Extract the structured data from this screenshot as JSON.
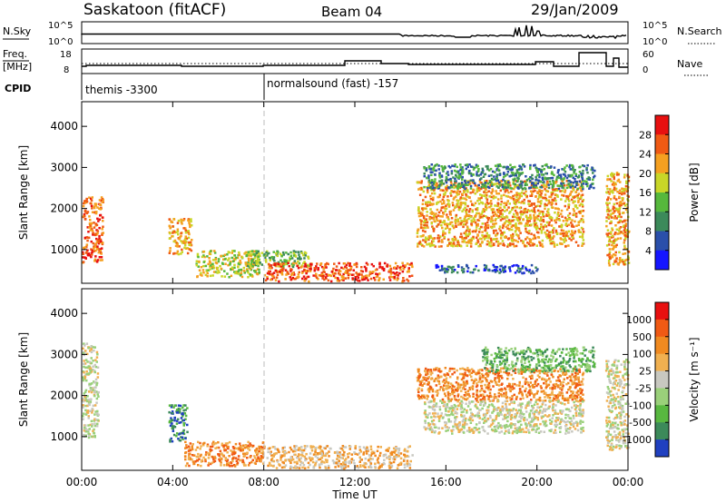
{
  "header": {
    "station": "Saskatoon (fitACF)",
    "beam": "Beam 04",
    "date": "29/Jan/2009"
  },
  "top_panels": {
    "nsky_label": "N.Sky",
    "nsky_ticks": [
      "10^5",
      "10^0"
    ],
    "nsearch_label": "N.Search",
    "nsearch_ticks": [
      "10^5",
      "10^0"
    ],
    "freq_label_1": "Freq.",
    "freq_label_2": "[MHz]",
    "freq_ticks": [
      "18",
      "8"
    ],
    "nave_label": "Nave",
    "nave_ticks": [
      "60",
      "0"
    ],
    "cpid_label": "CPID",
    "cpid_modes": [
      {
        "label": "themis -3300",
        "start_hour": 0
      },
      {
        "label": "normalsound (fast) -157",
        "start_hour": 8
      }
    ]
  },
  "chart_data": [
    {
      "type": "heatmap",
      "panel": "power",
      "ylabel": "Slant Range [km]",
      "ylim": [
        180,
        4600
      ],
      "yticks": [
        "1000",
        "2000",
        "3000",
        "4000"
      ],
      "xlim_hours": [
        0,
        24
      ],
      "colorbar_label": "Power [dB]",
      "colorbar_ticks": [
        "28",
        "24",
        "20",
        "16",
        "12",
        "8",
        "4"
      ],
      "colors": [
        "#1515ff",
        "#2a4faa",
        "#3c8a5a",
        "#56b83c",
        "#c8d628",
        "#f5a020",
        "#f05a14",
        "#e81010"
      ],
      "regions": [
        {
          "t0": 0.0,
          "t1": 0.9,
          "r0": 700,
          "r1": 2300,
          "level": 6
        },
        {
          "t0": 3.8,
          "t1": 4.8,
          "r0": 900,
          "r1": 1800,
          "level": 5
        },
        {
          "t0": 5.0,
          "t1": 7.8,
          "r0": 350,
          "r1": 1000,
          "level": 4
        },
        {
          "t0": 7.2,
          "t1": 10.0,
          "r0": 600,
          "r1": 1000,
          "level": 3
        },
        {
          "t0": 8.0,
          "t1": 14.5,
          "r0": 250,
          "r1": 700,
          "level": 6
        },
        {
          "t0": 14.7,
          "t1": 22.0,
          "r0": 1100,
          "r1": 2700,
          "level": 5
        },
        {
          "t0": 15.0,
          "t1": 22.5,
          "r0": 2500,
          "r1": 3100,
          "level": 2
        },
        {
          "t0": 15.5,
          "t1": 20.0,
          "r0": 450,
          "r1": 650,
          "level": 1
        },
        {
          "t0": 23.0,
          "t1": 24.0,
          "r0": 600,
          "r1": 2900,
          "level": 5
        }
      ]
    },
    {
      "type": "heatmap",
      "panel": "velocity",
      "ylabel": "Slant Range [km]",
      "ylim": [
        180,
        4600
      ],
      "yticks": [
        "1000",
        "2000",
        "3000",
        "4000"
      ],
      "xlim_hours": [
        0,
        24
      ],
      "xticks": [
        "00:00",
        "04:00",
        "08:00",
        "12:00",
        "16:00",
        "20:00",
        "00:00"
      ],
      "xlabel": "Time UT",
      "colorbar_label": "Velocity [m s⁻¹]",
      "colorbar_ticks": [
        "1000",
        "500",
        "100",
        "25",
        "-25",
        "-100",
        "-500",
        "-1000"
      ],
      "colors": [
        "#2040c0",
        "#3c8a5a",
        "#58b840",
        "#9ad07a",
        "#c8c8c0",
        "#f0b050",
        "#f08a20",
        "#f05a14",
        "#e81010"
      ],
      "regions": [
        {
          "t0": 0.0,
          "t1": 0.7,
          "r0": 1000,
          "r1": 3300,
          "level": 4
        },
        {
          "t0": 3.8,
          "t1": 4.6,
          "r0": 900,
          "r1": 1800,
          "level": 1
        },
        {
          "t0": 4.5,
          "t1": 8.0,
          "r0": 300,
          "r1": 900,
          "level": 6
        },
        {
          "t0": 8.0,
          "t1": 14.5,
          "r0": 250,
          "r1": 800,
          "level": 5
        },
        {
          "t0": 14.7,
          "t1": 22.0,
          "r0": 1900,
          "r1": 2700,
          "level": 6
        },
        {
          "t0": 15.0,
          "t1": 22.0,
          "r0": 1100,
          "r1": 1900,
          "level": 4
        },
        {
          "t0": 17.5,
          "t1": 22.5,
          "r0": 2600,
          "r1": 3200,
          "level": 2
        },
        {
          "t0": 23.0,
          "t1": 24.0,
          "r0": 700,
          "r1": 2900,
          "level": 4
        }
      ]
    }
  ]
}
